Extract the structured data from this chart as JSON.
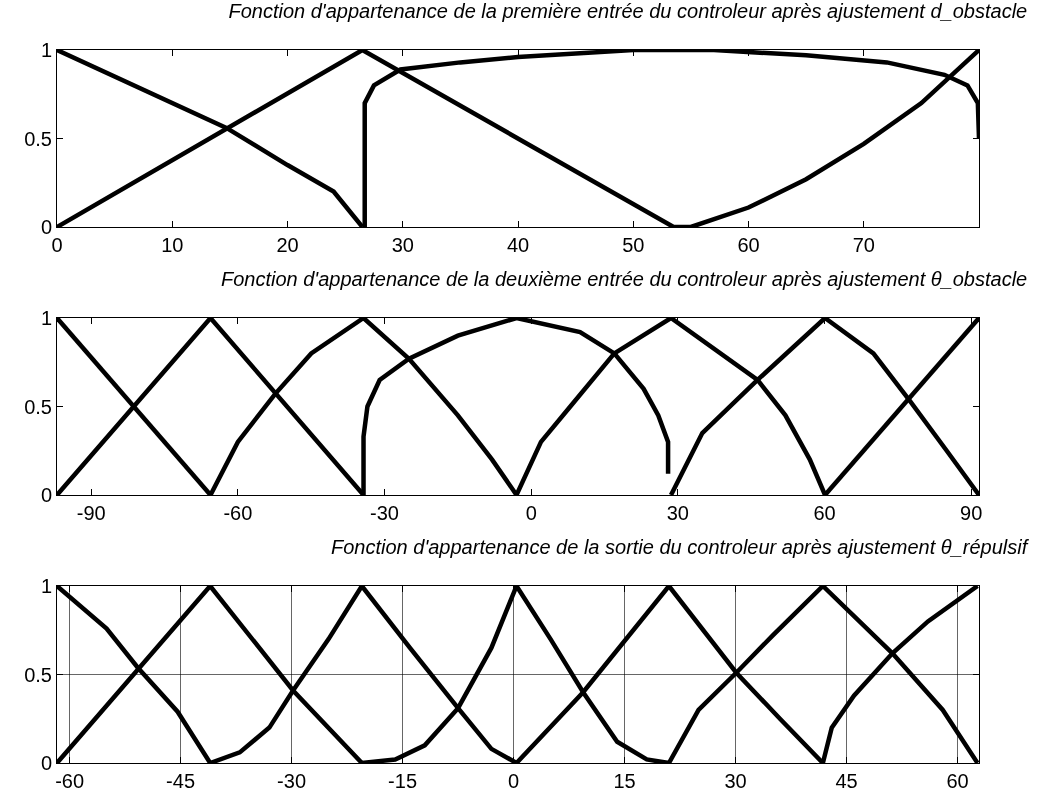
{
  "chart_data": [
    {
      "type": "line",
      "title": "Fonction d'appartenance de la première entrée du controleur après ajustement d_obstacle",
      "xlim": [
        0,
        80
      ],
      "xticks": [
        0,
        10,
        20,
        30,
        40,
        50,
        60,
        70
      ],
      "ylim": [
        0,
        1
      ],
      "yticks": [
        0,
        0.5,
        1
      ],
      "grid": false,
      "marker": "none",
      "line_style": "solid",
      "series": [
        {
          "color": "#000000",
          "x": [
            0,
            14.7,
            20,
            24,
            26.5
          ],
          "values": [
            1,
            0.56,
            0.35,
            0.2,
            0
          ]
        },
        {
          "color": "#000000",
          "x": [
            0,
            26.5,
            53.5,
            55,
            60,
            65,
            70,
            75,
            80
          ],
          "values": [
            0,
            1,
            0,
            0,
            0.11,
            0.27,
            0.47,
            0.7,
            1
          ]
        },
        {
          "color": "#000000",
          "x": [
            26.7,
            26.7,
            27.5,
            29.8,
            35,
            40,
            50,
            57,
            65,
            72,
            77,
            79,
            79.9,
            80
          ],
          "values": [
            0,
            0.7,
            0.8,
            0.89,
            0.93,
            0.96,
            1,
            1,
            0.97,
            0.93,
            0.86,
            0.8,
            0.7,
            0.5
          ]
        }
      ]
    },
    {
      "type": "line",
      "title": "Fonction d'appartenance de la deuxième entrée du controleur après ajustement θ_obstacle",
      "xlim": [
        -97,
        91.6
      ],
      "xticks": [
        -90,
        -60,
        -30,
        0,
        30,
        60,
        90
      ],
      "ylim": [
        0,
        1
      ],
      "yticks": [
        0,
        0.5,
        1
      ],
      "grid": false,
      "marker": "none",
      "line_style": "solid",
      "series": [
        {
          "color": "#000000",
          "x": [
            -97,
            -65.6
          ],
          "values": [
            1,
            0
          ]
        },
        {
          "color": "#000000",
          "x": [
            -97,
            -65.6,
            -34.3
          ],
          "values": [
            0,
            1,
            0
          ]
        },
        {
          "color": "#000000",
          "x": [
            -65.6,
            -60,
            -52.4,
            -45,
            -34.3,
            -25,
            -15,
            -8,
            -3
          ],
          "values": [
            0,
            0.3,
            0.57,
            0.8,
            1,
            0.77,
            0.45,
            0.2,
            0
          ]
        },
        {
          "color": "#000000",
          "x": [
            -34.3,
            -34.3,
            -33.5,
            -31,
            -25,
            -15,
            -3,
            10,
            17,
            23,
            26,
            28,
            28
          ],
          "values": [
            0,
            0.33,
            0.5,
            0.65,
            0.77,
            0.9,
            1,
            0.92,
            0.8,
            0.6,
            0.45,
            0.3,
            0.12
          ]
        },
        {
          "color": "#000000",
          "x": [
            -3,
            2,
            8,
            17,
            28.6,
            46.3,
            52,
            57,
            60.1
          ],
          "values": [
            0,
            0.3,
            0.5,
            0.8,
            1,
            0.65,
            0.45,
            0.2,
            0
          ]
        },
        {
          "color": "#000000",
          "x": [
            28.6,
            35,
            46.3,
            60.1,
            70,
            77.5,
            85,
            91.6
          ],
          "values": [
            0,
            0.35,
            0.65,
            1,
            0.8,
            0.53,
            0.25,
            0
          ]
        },
        {
          "color": "#000000",
          "x": [
            60.1,
            91.6
          ],
          "values": [
            0,
            1
          ]
        }
      ]
    },
    {
      "type": "line",
      "title": "Fonction d'appartenance de la sortie du controleur après ajustement θ_répulsif",
      "xlim": [
        -61.7,
        62.9
      ],
      "xticks": [
        -60,
        -45,
        -30,
        -15,
        0,
        15,
        30,
        45,
        60
      ],
      "ylim": [
        0,
        1
      ],
      "yticks": [
        0,
        0.5,
        1
      ],
      "grid": true,
      "marker": "none",
      "line_style": "solid",
      "series": [
        {
          "color": "#000000",
          "x": [
            -61.7,
            -55,
            -50.8,
            -45.4,
            -41
          ],
          "values": [
            1,
            0.76,
            0.54,
            0.29,
            0
          ]
        },
        {
          "color": "#000000",
          "x": [
            -61.7,
            -41,
            -29.8,
            -20.5
          ],
          "values": [
            0,
            1,
            0.41,
            0
          ]
        },
        {
          "color": "#000000",
          "x": [
            -41,
            -37,
            -33,
            -29.8,
            -25,
            -20.5,
            -14,
            -7.5,
            -3,
            0.4
          ],
          "values": [
            0,
            0.06,
            0.2,
            0.41,
            0.7,
            1,
            0.65,
            0.31,
            0.08,
            0
          ]
        },
        {
          "color": "#000000",
          "x": [
            -20.5,
            -16,
            -12,
            -7.5,
            -3,
            0.4,
            5,
            9.4,
            14,
            18,
            21
          ],
          "values": [
            0,
            0.02,
            0.1,
            0.31,
            0.65,
            1,
            0.7,
            0.4,
            0.12,
            0.02,
            0
          ]
        },
        {
          "color": "#000000",
          "x": [
            0.4,
            9.4,
            21,
            30.1,
            36,
            41.8
          ],
          "values": [
            0,
            0.4,
            1,
            0.51,
            0.25,
            0
          ]
        },
        {
          "color": "#000000",
          "x": [
            21,
            25,
            30.1,
            35,
            41.8,
            51.2,
            58,
            62.7
          ],
          "values": [
            0,
            0.3,
            0.51,
            0.72,
            1,
            0.62,
            0.3,
            0
          ]
        },
        {
          "color": "#000000",
          "x": [
            41.8,
            43,
            46,
            51.2,
            56,
            62.7
          ],
          "values": [
            0,
            0.2,
            0.38,
            0.62,
            0.8,
            1
          ]
        }
      ]
    }
  ]
}
